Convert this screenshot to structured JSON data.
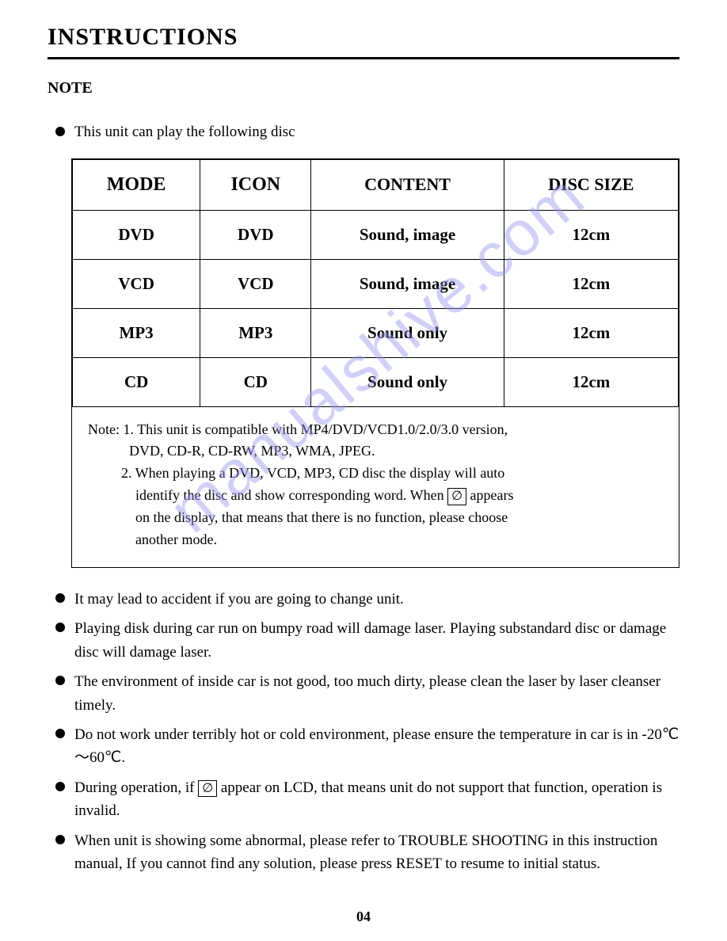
{
  "page": {
    "title": "INSTRUCTIONS",
    "section": "NOTE",
    "page_number": "04"
  },
  "intro_bullet": "This unit can play the following disc",
  "table": {
    "headers": [
      "MODE",
      "ICON",
      "CONTENT",
      "DISC SIZE"
    ],
    "rows": [
      [
        "DVD",
        "DVD",
        "Sound, image",
        "12cm"
      ],
      [
        "VCD",
        "VCD",
        "Sound, image",
        "12cm"
      ],
      [
        "MP3",
        "MP3",
        "Sound only",
        "12cm"
      ],
      [
        "CD",
        "CD",
        "Sound only",
        "12cm"
      ]
    ]
  },
  "table_note": {
    "line1": "Note: 1. This unit is compatible with MP4/DVD/VCD1.0/2.0/3.0 version,",
    "line2": "DVD, CD-R, CD-RW, MP3, WMA, JPEG.",
    "line3": "2. When playing a DVD, VCD, MP3, CD disc the display will auto",
    "line4a": "identify the disc and show corresponding word. When ",
    "line4b": " appears",
    "line5": "on the display, that means that there is no function, please choose",
    "line6": "another mode.",
    "icon_glyph": "∅"
  },
  "bullets": [
    "It may lead to accident if you are going to change unit.",
    "Playing disk during car run on bumpy road will damage laser. Playing substandard disc or damage disc will damage laser.",
    "The environment of inside car is not good, too much dirty, please clean the laser by laser cleanser timely.",
    "Do not work under terribly hot or cold environment, please ensure the temperature in car is in -20℃～60℃."
  ],
  "bullet_with_icon": {
    "before": "During operation, if ",
    "after": " appear on LCD, that means unit do not support that function, operation is invalid.",
    "icon_glyph": "∅"
  },
  "last_bullet": "When unit is showing some abnormal, please refer to TROUBLE SHOOTING in this instruction manual, If you cannot find any solution, please press RESET to resume to initial status.",
  "watermark": "manualshive.com",
  "colors": {
    "text": "#000000",
    "background": "#ffffff",
    "watermark": "#9999ee"
  }
}
